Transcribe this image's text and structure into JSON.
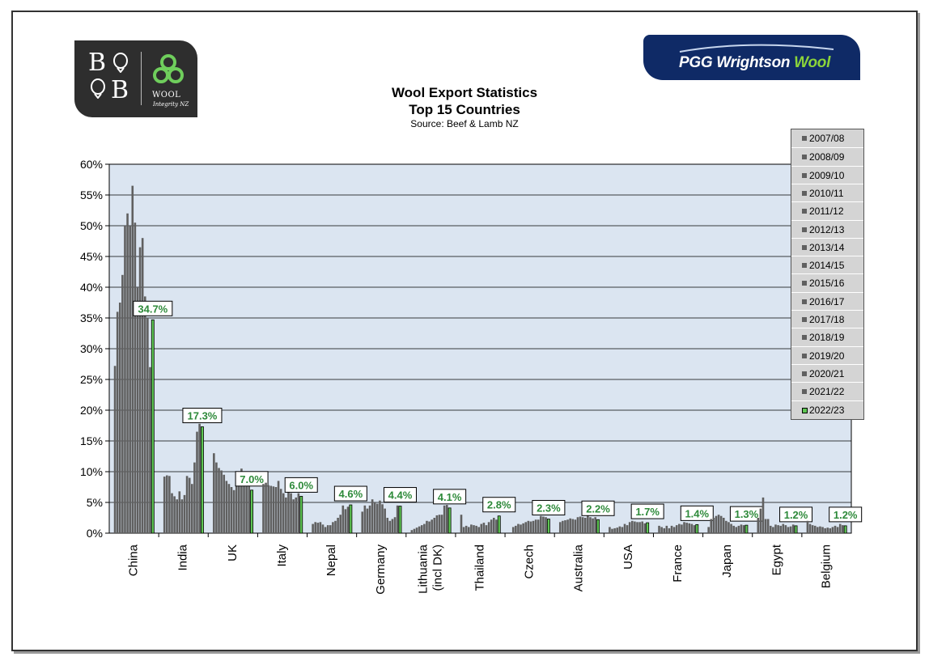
{
  "chart_data": {
    "type": "bar",
    "title": "Wool Export Statistics",
    "subtitle": "Top 15 Countries",
    "source": "Source: Beef & Lamb NZ",
    "xlabel": "",
    "ylabel": "",
    "ylim": [
      0,
      60
    ],
    "yticks": [
      "0%",
      "5%",
      "10%",
      "15%",
      "20%",
      "25%",
      "30%",
      "35%",
      "40%",
      "45%",
      "50%",
      "55%",
      "60%"
    ],
    "grid": true,
    "legend_position": "right",
    "categories": [
      "China",
      "India",
      "UK",
      "Italy",
      "Nepal",
      "Germany",
      "Lithuania (incl DK)",
      "Thailand",
      "Czech",
      "Australia",
      "USA",
      "France",
      "Japan",
      "Egypt",
      "Belgium"
    ],
    "category_labels": [
      [
        "China"
      ],
      [
        "India"
      ],
      [
        "UK"
      ],
      [
        "Italy"
      ],
      [
        "Nepal"
      ],
      [
        "Germany"
      ],
      [
        "Lithuania",
        "(incl DK)"
      ],
      [
        "Thailand"
      ],
      [
        "Czech"
      ],
      [
        "Australia"
      ],
      [
        "USA"
      ],
      [
        "France"
      ],
      [
        "Japan"
      ],
      [
        "Egypt"
      ],
      [
        "Belgium"
      ]
    ],
    "series": [
      {
        "name": "2007/08",
        "values": [
          27.2,
          9.2,
          13.0,
          8.0,
          1.5,
          3.5,
          0.5,
          3.0,
          0.0,
          1.8,
          1.0,
          1.2,
          1.0,
          2.5,
          2.0
        ]
      },
      {
        "name": "2008/09",
        "values": [
          36.0,
          9.4,
          11.5,
          8.2,
          1.8,
          4.5,
          0.7,
          1.0,
          1.0,
          2.0,
          0.7,
          1.0,
          2.3,
          4.0,
          1.5
        ]
      },
      {
        "name": "2009/10",
        "values": [
          37.5,
          9.3,
          10.6,
          7.8,
          1.7,
          4.0,
          0.9,
          1.2,
          1.2,
          2.1,
          0.8,
          0.8,
          2.5,
          5.8,
          1.3
        ]
      },
      {
        "name": "2010/11",
        "values": [
          42.0,
          6.5,
          10.2,
          7.7,
          1.8,
          4.5,
          1.1,
          1.0,
          1.5,
          2.2,
          0.9,
          1.2,
          2.8,
          2.3,
          1.2
        ]
      },
      {
        "name": "2011/12",
        "values": [
          50.0,
          6.0,
          9.5,
          7.6,
          1.4,
          5.5,
          1.3,
          1.4,
          1.4,
          2.4,
          1.1,
          0.8,
          3.0,
          2.3,
          1.0
        ]
      },
      {
        "name": "2012/13",
        "values": [
          52.0,
          5.5,
          8.5,
          7.5,
          1.0,
          5.0,
          1.5,
          1.3,
          1.6,
          2.3,
          1.0,
          1.2,
          2.8,
          1.2,
          1.1
        ]
      },
      {
        "name": "2013/14",
        "values": [
          50.0,
          6.8,
          8.0,
          8.5,
          1.3,
          4.8,
          2.0,
          1.2,
          1.8,
          2.2,
          1.5,
          1.0,
          2.5,
          1.0,
          1.0
        ]
      },
      {
        "name": "2014/15",
        "values": [
          56.5,
          5.5,
          7.5,
          7.2,
          1.3,
          5.3,
          1.9,
          1.0,
          2.0,
          2.6,
          1.3,
          1.3,
          2.0,
          1.4,
          0.8
        ]
      },
      {
        "name": "2015/16",
        "values": [
          50.5,
          6.2,
          7.0,
          6.5,
          1.8,
          4.7,
          2.2,
          1.5,
          1.9,
          2.7,
          1.8,
          1.5,
          1.8,
          1.3,
          0.9
        ]
      },
      {
        "name": "2016/17",
        "values": [
          40.0,
          9.3,
          8.5,
          5.8,
          2.0,
          4.0,
          2.5,
          1.7,
          2.0,
          2.6,
          2.0,
          1.4,
          1.5,
          1.2,
          0.8
        ]
      },
      {
        "name": "2017/18",
        "values": [
          46.5,
          9.0,
          9.8,
          6.8,
          2.5,
          2.5,
          2.9,
          1.3,
          2.2,
          2.5,
          1.9,
          1.8,
          1.2,
          1.5,
          1.0
        ]
      },
      {
        "name": "2018/19",
        "values": [
          48.0,
          8.0,
          10.5,
          6.5,
          3.0,
          2.0,
          3.0,
          1.8,
          2.2,
          2.9,
          1.8,
          1.7,
          1.0,
          1.3,
          1.2
        ]
      },
      {
        "name": "2019/20",
        "values": [
          38.5,
          11.5,
          9.8,
          5.5,
          4.5,
          2.3,
          3.0,
          2.2,
          2.8,
          2.6,
          1.8,
          1.6,
          1.2,
          1.0,
          1.0
        ]
      },
      {
        "name": "2020/21",
        "values": [
          35.0,
          16.5,
          9.5,
          5.8,
          3.9,
          2.6,
          4.5,
          2.5,
          2.7,
          2.4,
          1.9,
          1.5,
          1.4,
          1.1,
          1.5
        ]
      },
      {
        "name": "2021/22",
        "values": [
          27.0,
          17.8,
          8.5,
          6.5,
          4.3,
          4.5,
          4.6,
          2.2,
          2.6,
          2.6,
          1.6,
          1.3,
          1.3,
          1.4,
          1.3
        ]
      },
      {
        "name": "2022/23",
        "values": [
          34.7,
          17.3,
          7.0,
          6.0,
          4.6,
          4.4,
          4.1,
          2.8,
          2.3,
          2.2,
          1.7,
          1.4,
          1.3,
          1.2,
          1.2
        ]
      }
    ],
    "data_labels": [
      "34.7%",
      "17.3%",
      "7.0%",
      "6.0%",
      "4.6%",
      "4.4%",
      "4.1%",
      "2.8%",
      "2.3%",
      "2.2%",
      "1.7%",
      "1.4%",
      "1.3%",
      "1.2%",
      "1.2%"
    ],
    "colors": {
      "past": "#606060",
      "current": "#5ec653",
      "plot_bg": "#dbe5f1",
      "label_text": "#2e8a3a",
      "grid": "#000000"
    }
  },
  "logos": {
    "left": {
      "letters": [
        "B",
        "B"
      ],
      "wool": "WOOL",
      "sub": "Integrity NZ",
      "icon": "triskele-icon"
    },
    "right": {
      "text_main": "PGG Wrightson ",
      "text_accent": "Wool"
    }
  }
}
